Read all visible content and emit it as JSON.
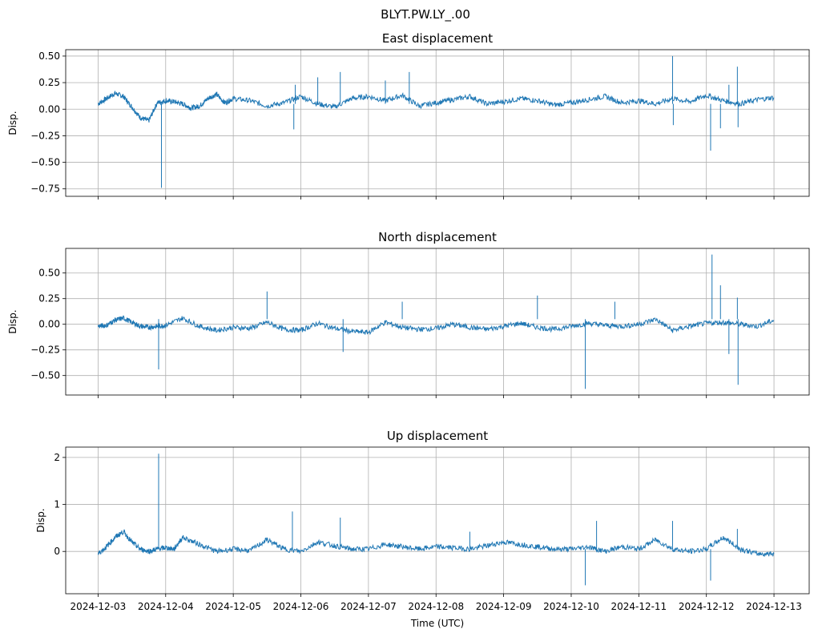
{
  "chart_data": {
    "type": "line",
    "suptitle": "BLYT.PW.LY_.00",
    "xlabel": "Time (UTC)",
    "x_ticks": [
      "2024-12-03",
      "2024-12-04",
      "2024-12-05",
      "2024-12-06",
      "2024-12-07",
      "2024-12-08",
      "2024-12-09",
      "2024-12-10",
      "2024-12-11",
      "2024-12-12",
      "2024-12-13"
    ],
    "xlim": [
      "2024-12-02T12:30",
      "2024-12-13T12:30"
    ],
    "line_color": "#1f77b4",
    "grid": true,
    "panels": [
      {
        "title": "East displacement",
        "ylabel": "Disp.",
        "ylim": [
          -0.82,
          0.56
        ],
        "y_ticks": [
          0.5,
          0.25,
          0.0,
          -0.25,
          -0.5,
          -0.75
        ],
        "y_tick_labels": [
          "0.50",
          "0.25",
          "0.00",
          "−0.25",
          "−0.50",
          "−0.75"
        ],
        "series": [
          {
            "x": [
              "2024-12-03T00:00",
              "2024-12-03T03:00",
              "2024-12-03T06:00",
              "2024-12-03T09:00",
              "2024-12-03T12:00",
              "2024-12-03T15:00",
              "2024-12-03T18:00",
              "2024-12-03T21:00",
              "2024-12-04T00:00",
              "2024-12-04T03:00",
              "2024-12-04T06:00",
              "2024-12-04T09:00",
              "2024-12-04T12:00",
              "2024-12-04T15:00",
              "2024-12-04T18:00",
              "2024-12-04T21:00",
              "2024-12-05T00:00",
              "2024-12-05T06:00",
              "2024-12-05T12:00",
              "2024-12-05T18:00",
              "2024-12-06T00:00",
              "2024-12-06T06:00",
              "2024-12-06T12:00",
              "2024-12-06T18:00",
              "2024-12-07T00:00",
              "2024-12-07T06:00",
              "2024-12-07T12:00",
              "2024-12-07T18:00",
              "2024-12-08T00:00",
              "2024-12-08T06:00",
              "2024-12-08T12:00",
              "2024-12-08T18:00",
              "2024-12-09T00:00",
              "2024-12-09T06:00",
              "2024-12-09T12:00",
              "2024-12-09T18:00",
              "2024-12-10T00:00",
              "2024-12-10T06:00",
              "2024-12-10T12:00",
              "2024-12-10T18:00",
              "2024-12-11T00:00",
              "2024-12-11T06:00",
              "2024-12-11T12:00",
              "2024-12-11T18:00",
              "2024-12-12T00:00",
              "2024-12-12T06:00",
              "2024-12-12T12:00",
              "2024-12-12T18:00",
              "2024-12-13T00:00"
            ],
            "y": [
              0.05,
              0.1,
              0.15,
              0.12,
              0.02,
              -0.08,
              -0.11,
              0.06,
              0.08,
              0.07,
              0.05,
              0.01,
              0.03,
              0.1,
              0.14,
              0.06,
              0.1,
              0.08,
              0.03,
              0.06,
              0.12,
              0.05,
              0.02,
              0.1,
              0.12,
              0.08,
              0.13,
              0.03,
              0.06,
              0.09,
              0.12,
              0.05,
              0.07,
              0.1,
              0.08,
              0.04,
              0.06,
              0.09,
              0.12,
              0.06,
              0.08,
              0.05,
              0.1,
              0.07,
              0.13,
              0.08,
              0.05,
              0.09,
              0.11
            ]
          }
        ],
        "spikes": [
          {
            "x": "2024-12-03T22:30",
            "y": -0.74
          },
          {
            "x": "2024-12-05T21:30",
            "y": -0.19
          },
          {
            "x": "2024-12-05T22:00",
            "y": 0.23
          },
          {
            "x": "2024-12-06T06:00",
            "y": 0.3
          },
          {
            "x": "2024-12-06T14:00",
            "y": 0.35
          },
          {
            "x": "2024-12-07T06:00",
            "y": 0.27
          },
          {
            "x": "2024-12-07T14:30",
            "y": 0.35
          },
          {
            "x": "2024-12-11T12:00",
            "y": 0.5
          },
          {
            "x": "2024-12-11T12:15",
            "y": -0.15
          },
          {
            "x": "2024-12-12T01:30",
            "y": -0.39
          },
          {
            "x": "2024-12-12T05:00",
            "y": -0.18
          },
          {
            "x": "2024-12-12T08:00",
            "y": 0.23
          },
          {
            "x": "2024-12-12T11:00",
            "y": 0.4
          },
          {
            "x": "2024-12-12T11:15",
            "y": -0.17
          }
        ]
      },
      {
        "title": "North displacement",
        "ylabel": "Disp.",
        "ylim": [
          -0.69,
          0.74
        ],
        "y_ticks": [
          0.5,
          0.25,
          0.0,
          -0.25,
          -0.5
        ],
        "y_tick_labels": [
          "0.50",
          "0.25",
          "0.00",
          "−0.25",
          "−0.50"
        ],
        "series": [
          {
            "x": [
              "2024-12-03T00:00",
              "2024-12-03T03:00",
              "2024-12-03T06:00",
              "2024-12-03T09:00",
              "2024-12-03T12:00",
              "2024-12-03T15:00",
              "2024-12-03T18:00",
              "2024-12-03T21:00",
              "2024-12-04T00:00",
              "2024-12-04T06:00",
              "2024-12-04T12:00",
              "2024-12-04T18:00",
              "2024-12-05T00:00",
              "2024-12-05T06:00",
              "2024-12-05T12:00",
              "2024-12-05T18:00",
              "2024-12-06T00:00",
              "2024-12-06T06:00",
              "2024-12-06T12:00",
              "2024-12-06T18:00",
              "2024-12-07T00:00",
              "2024-12-07T06:00",
              "2024-12-07T12:00",
              "2024-12-07T18:00",
              "2024-12-08T00:00",
              "2024-12-08T06:00",
              "2024-12-08T12:00",
              "2024-12-08T18:00",
              "2024-12-09T00:00",
              "2024-12-09T06:00",
              "2024-12-09T12:00",
              "2024-12-09T18:00",
              "2024-12-10T00:00",
              "2024-12-10T06:00",
              "2024-12-10T12:00",
              "2024-12-10T18:00",
              "2024-12-11T00:00",
              "2024-12-11T06:00",
              "2024-12-11T12:00",
              "2024-12-11T18:00",
              "2024-12-12T00:00",
              "2024-12-12T06:00",
              "2024-12-12T12:00",
              "2024-12-12T18:00",
              "2024-12-13T00:00"
            ],
            "y": [
              -0.02,
              -0.01,
              0.04,
              0.06,
              0.02,
              -0.02,
              -0.03,
              -0.02,
              -0.01,
              0.06,
              -0.02,
              -0.06,
              -0.03,
              -0.04,
              0.02,
              -0.05,
              -0.06,
              0.01,
              -0.04,
              -0.07,
              -0.08,
              0.02,
              -0.03,
              -0.05,
              -0.04,
              0.0,
              -0.03,
              -0.05,
              -0.02,
              0.01,
              -0.03,
              -0.05,
              -0.02,
              0.01,
              -0.01,
              -0.02,
              0.0,
              0.05,
              -0.06,
              -0.02,
              0.01,
              0.02,
              0.0,
              -0.02,
              0.04
            ]
          }
        ],
        "spikes": [
          {
            "x": "2024-12-03T21:30",
            "y": -0.44
          },
          {
            "x": "2024-12-05T12:00",
            "y": 0.32
          },
          {
            "x": "2024-12-06T15:00",
            "y": -0.27
          },
          {
            "x": "2024-12-07T12:00",
            "y": 0.22
          },
          {
            "x": "2024-12-09T12:00",
            "y": 0.28
          },
          {
            "x": "2024-12-10T05:00",
            "y": -0.63
          },
          {
            "x": "2024-12-10T15:30",
            "y": 0.22
          },
          {
            "x": "2024-12-12T02:00",
            "y": 0.68
          },
          {
            "x": "2024-12-12T05:00",
            "y": 0.38
          },
          {
            "x": "2024-12-12T08:00",
            "y": -0.29
          },
          {
            "x": "2024-12-12T11:00",
            "y": 0.26
          },
          {
            "x": "2024-12-12T11:15",
            "y": -0.59
          }
        ]
      },
      {
        "title": "Up displacement",
        "ylabel": "Disp.",
        "ylim": [
          -0.9,
          2.22
        ],
        "y_ticks": [
          2,
          1,
          0
        ],
        "y_tick_labels": [
          "2",
          "1",
          "0"
        ],
        "series": [
          {
            "x": [
              "2024-12-03T00:00",
              "2024-12-03T03:00",
              "2024-12-03T06:00",
              "2024-12-03T09:00",
              "2024-12-03T12:00",
              "2024-12-03T15:00",
              "2024-12-03T18:00",
              "2024-12-03T21:00",
              "2024-12-04T00:00",
              "2024-12-04T03:00",
              "2024-12-04T06:00",
              "2024-12-04T12:00",
              "2024-12-04T18:00",
              "2024-12-05T00:00",
              "2024-12-05T06:00",
              "2024-12-05T12:00",
              "2024-12-05T18:00",
              "2024-12-06T00:00",
              "2024-12-06T06:00",
              "2024-12-06T12:00",
              "2024-12-06T18:00",
              "2024-12-07T00:00",
              "2024-12-07T06:00",
              "2024-12-07T12:00",
              "2024-12-07T18:00",
              "2024-12-08T00:00",
              "2024-12-08T06:00",
              "2024-12-08T12:00",
              "2024-12-08T18:00",
              "2024-12-09T00:00",
              "2024-12-09T06:00",
              "2024-12-09T12:00",
              "2024-12-09T18:00",
              "2024-12-10T00:00",
              "2024-12-10T06:00",
              "2024-12-10T12:00",
              "2024-12-10T18:00",
              "2024-12-11T00:00",
              "2024-12-11T06:00",
              "2024-12-11T12:00",
              "2024-12-11T18:00",
              "2024-12-12T00:00",
              "2024-12-12T06:00",
              "2024-12-12T12:00",
              "2024-12-12T18:00",
              "2024-12-13T00:00"
            ],
            "y": [
              -0.05,
              0.1,
              0.3,
              0.42,
              0.2,
              0.05,
              0.0,
              0.05,
              0.08,
              0.05,
              0.3,
              0.15,
              0.0,
              0.05,
              0.02,
              0.25,
              0.05,
              0.0,
              0.2,
              0.12,
              0.05,
              0.05,
              0.15,
              0.1,
              0.05,
              0.1,
              0.08,
              0.05,
              0.12,
              0.2,
              0.15,
              0.1,
              0.05,
              0.05,
              0.1,
              0.0,
              0.1,
              0.05,
              0.25,
              0.05,
              0.0,
              0.05,
              0.3,
              0.05,
              -0.05,
              -0.05
            ]
          }
        ],
        "spikes": [
          {
            "x": "2024-12-03T21:30",
            "y": 2.08
          },
          {
            "x": "2024-12-05T21:00",
            "y": 0.85
          },
          {
            "x": "2024-12-06T14:00",
            "y": 0.72
          },
          {
            "x": "2024-12-08T12:00",
            "y": 0.42
          },
          {
            "x": "2024-12-10T05:00",
            "y": -0.72
          },
          {
            "x": "2024-12-10T09:00",
            "y": 0.65
          },
          {
            "x": "2024-12-11T12:00",
            "y": 0.65
          },
          {
            "x": "2024-12-12T01:30",
            "y": -0.62
          },
          {
            "x": "2024-12-12T11:00",
            "y": 0.48
          }
        ]
      }
    ]
  }
}
